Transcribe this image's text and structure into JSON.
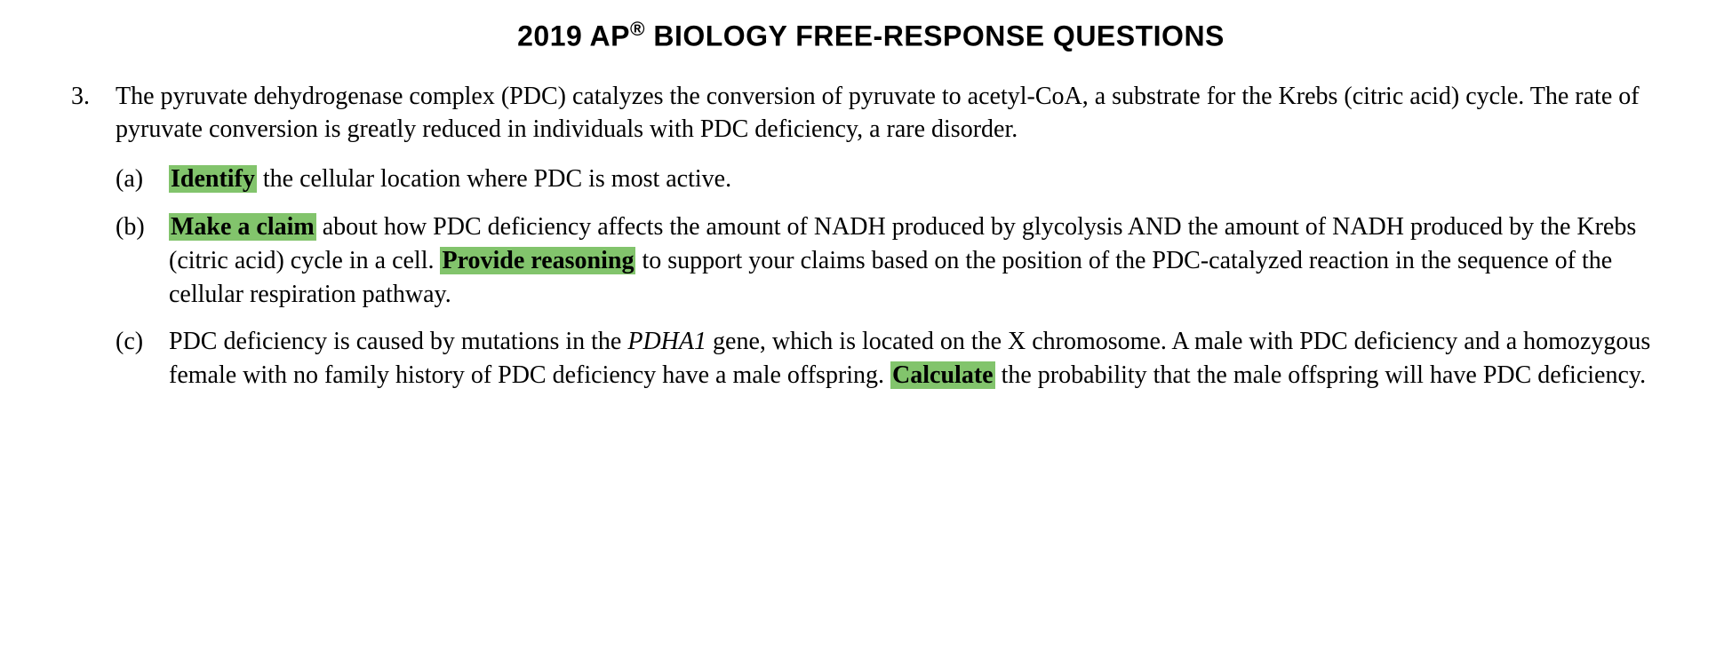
{
  "title_prefix": "2019 AP",
  "title_reg": "®",
  "title_suffix": " BIOLOGY FREE-RESPONSE QUESTIONS",
  "highlight_color": "#82c46c",
  "text_color": "#000000",
  "background_color": "#ffffff",
  "title_fontsize": 32,
  "body_fontsize": 28,
  "question_number": "3.",
  "question_intro": "The pyruvate dehydrogenase complex (PDC) catalyzes the conversion of pyruvate to acetyl-CoA, a substrate for the Krebs (citric acid) cycle. The rate of pyruvate conversion is greatly reduced in individuals with PDC deficiency, a rare disorder.",
  "parts": {
    "a": {
      "label": "(a)",
      "hl1": "Identify",
      "t1": " the cellular location where PDC is most active."
    },
    "b": {
      "label": "(b)",
      "hl1": "Make a claim",
      "t1": " about how PDC deficiency affects the amount of NADH produced by glycolysis AND the amount of NADH produced by the Krebs (citric acid) cycle in a cell. ",
      "hl2": "Provide reasoning",
      "t2": " to support your claims based on the position of the PDC-catalyzed reaction in the sequence of the cellular respiration pathway."
    },
    "c": {
      "label": "(c)",
      "t1": "PDC deficiency is caused by mutations in the ",
      "gene": "PDHA1",
      "t2": " gene, which is located on the X chromosome. A male with PDC deficiency and a homozygous female with no family history of PDC deficiency have a male offspring. ",
      "hl1": "Calculate",
      "t3": " the probability that the male offspring will have PDC deficiency."
    }
  }
}
